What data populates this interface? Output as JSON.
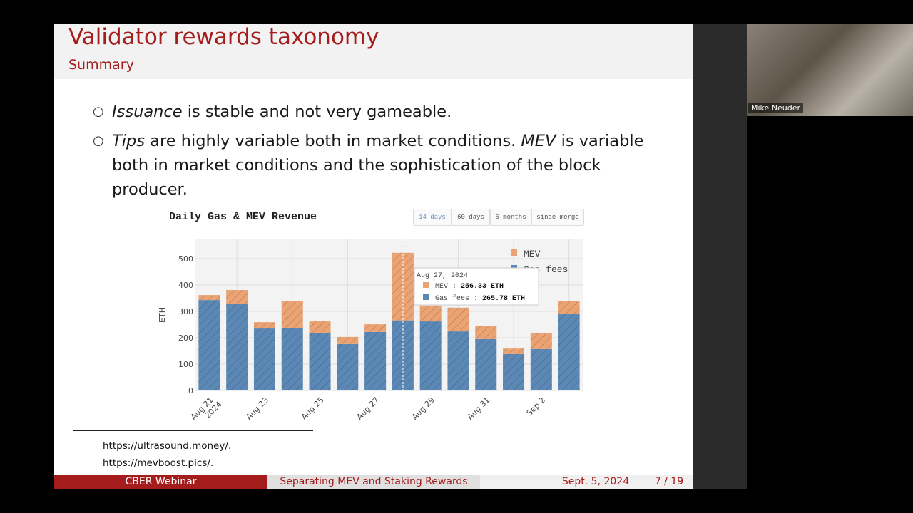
{
  "slide": {
    "title": "Validator rewards taxonomy",
    "subtitle": "Summary",
    "bullets": [
      [
        "Issuance",
        " is stable and not very gameable."
      ],
      [
        "Tips",
        " are highly variable both in market conditions. ",
        "MEV",
        " is variable both in market conditions and the sophistication of the block producer."
      ]
    ],
    "footnotes": [
      "https://ultrasound.money/.",
      "https://mevboost.pics/."
    ],
    "footer": {
      "left": "CBER Webinar",
      "center": "Separating MEV and Staking Rewards",
      "date": "Sept. 5, 2024",
      "page": "7 / 19"
    }
  },
  "participant": {
    "name": "Mike Neuder"
  },
  "chart_data": {
    "type": "stacked_bar",
    "title": "Daily Gas & MEV Revenue",
    "range_buttons": [
      "14 days",
      "60 days",
      "6 months",
      "since merge"
    ],
    "y_label": "ETH",
    "categories": [
      "Aug 21",
      null,
      "Aug 23",
      null,
      "Aug 25",
      null,
      "Aug 27",
      null,
      "Aug 29",
      null,
      "Aug 31",
      null,
      "Sep 2",
      null
    ],
    "first_label_year": "2024",
    "series": [
      {
        "name": "Gas fees",
        "color": "#5b88b5",
        "values": [
          343,
          327,
          235,
          238,
          219,
          176,
          222,
          265.78,
          262,
          224,
          195,
          138,
          157,
          292
        ]
      },
      {
        "name": "MEV",
        "color": "#eba373",
        "values": [
          19,
          54,
          24,
          100,
          43,
          27,
          29,
          256.33,
          60,
          90,
          51,
          21,
          62,
          46
        ]
      }
    ],
    "legend_order": [
      1,
      0
    ],
    "ylim": [
      0,
      573
    ],
    "yticks": [
      0,
      100,
      200,
      300,
      400,
      500
    ],
    "grid": true,
    "tooltip": {
      "date": "Aug 27, 2024",
      "items": [
        {
          "name": "MEV",
          "text": "256.33 ETH"
        },
        {
          "name": "Gas fees",
          "text": "265.78 ETH"
        }
      ]
    }
  }
}
